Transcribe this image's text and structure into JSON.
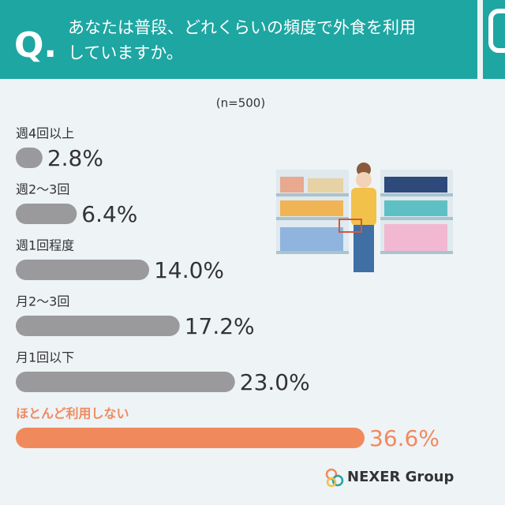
{
  "chart_data": {
    "type": "hbar",
    "question_mark": "Q.",
    "title_lines": [
      "あなたは普段、どれくらいの頻度で外食を利用",
      "していますか。"
    ],
    "subtitle": "(n=500)",
    "categories": [
      "週4回以上",
      "週2～3回",
      "週1回程度",
      "月2～3回",
      "月1回以下",
      "ほとんど利用しない"
    ],
    "values": [
      2.8,
      6.4,
      14.0,
      17.2,
      23.0,
      36.6
    ],
    "value_labels": [
      "2.8%",
      "6.4%",
      "14.0%",
      "17.2%",
      "23.0%",
      "36.6%"
    ],
    "colors": [
      "#9a9a9c",
      "#9a9a9c",
      "#9a9a9c",
      "#9a9a9c",
      "#9a9a9c",
      "#f08a5d"
    ],
    "brand": "NEXER Group"
  }
}
